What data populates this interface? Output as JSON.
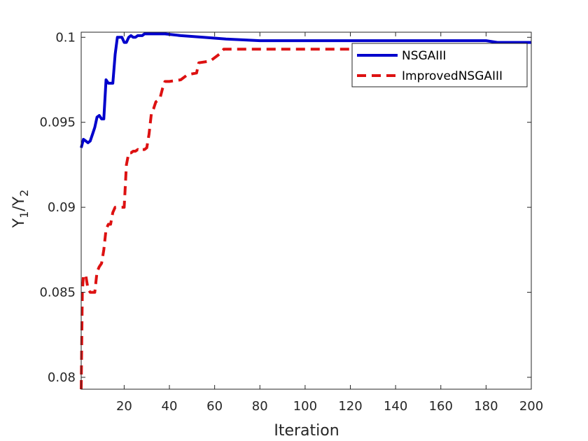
{
  "chart_data": {
    "type": "line",
    "title": "",
    "xlabel": "Iteration",
    "ylabel": {
      "base1": "Y",
      "sub1": "1",
      "sep": "/",
      "base2": "Y",
      "sub2": "2"
    },
    "xlim": [
      1,
      200
    ],
    "ylim": [
      0.0793,
      0.1003
    ],
    "xticks": [
      20,
      40,
      60,
      80,
      100,
      120,
      140,
      160,
      180,
      200
    ],
    "xtick_labels": [
      "20",
      "40",
      "60",
      "80",
      "100",
      "120",
      "140",
      "160",
      "180",
      "200"
    ],
    "yticks": [
      0.08,
      0.085,
      0.09,
      0.095,
      0.1
    ],
    "ytick_labels": [
      "0.08",
      "0.085",
      "0.09",
      "0.095",
      "0.1"
    ],
    "grid": false,
    "legend_position": "top-right",
    "series": [
      {
        "name": "NSGAIII",
        "color": "#0000CC",
        "style": "solid",
        "points": [
          [
            1,
            0.0935
          ],
          [
            2,
            0.094
          ],
          [
            3,
            0.0939
          ],
          [
            4,
            0.0938
          ],
          [
            5,
            0.0939
          ],
          [
            6,
            0.0943
          ],
          [
            7,
            0.0947
          ],
          [
            8,
            0.0953
          ],
          [
            9,
            0.0954
          ],
          [
            10,
            0.0952
          ],
          [
            11,
            0.0952
          ],
          [
            12,
            0.0975
          ],
          [
            13,
            0.0973
          ],
          [
            14,
            0.0973
          ],
          [
            15,
            0.0973
          ],
          [
            16,
            0.099
          ],
          [
            17,
            0.1
          ],
          [
            18,
            0.1
          ],
          [
            19,
            0.1
          ],
          [
            20,
            0.0997
          ],
          [
            21,
            0.0997
          ],
          [
            22,
            0.1
          ],
          [
            23,
            0.1001
          ],
          [
            24,
            0.1
          ],
          [
            25,
            0.1
          ],
          [
            26,
            0.1001
          ],
          [
            27,
            0.1001
          ],
          [
            28,
            0.1001
          ],
          [
            29,
            0.1002
          ],
          [
            30,
            0.1002
          ],
          [
            32,
            0.1002
          ],
          [
            34,
            0.1002
          ],
          [
            38,
            0.1002
          ],
          [
            45,
            0.1001
          ],
          [
            55,
            0.1
          ],
          [
            65,
            0.0999
          ],
          [
            80,
            0.0998
          ],
          [
            100,
            0.0998
          ],
          [
            120,
            0.0998
          ],
          [
            140,
            0.0998
          ],
          [
            160,
            0.0998
          ],
          [
            180,
            0.0998
          ],
          [
            185,
            0.0997
          ],
          [
            200,
            0.0997
          ]
        ]
      },
      {
        "name": "ImprovedNSGAIII",
        "color": "#DD1111",
        "style": "dashed",
        "points": [
          [
            1,
            0.0793
          ],
          [
            1.5,
            0.085
          ],
          [
            2,
            0.086
          ],
          [
            3,
            0.086
          ],
          [
            4,
            0.0852
          ],
          [
            5,
            0.085
          ],
          [
            6,
            0.085
          ],
          [
            7,
            0.085
          ],
          [
            8,
            0.0862
          ],
          [
            9,
            0.0865
          ],
          [
            10,
            0.0867
          ],
          [
            11,
            0.0875
          ],
          [
            12,
            0.0887
          ],
          [
            13,
            0.089
          ],
          [
            14,
            0.089
          ],
          [
            15,
            0.0897
          ],
          [
            16,
            0.09
          ],
          [
            17,
            0.09
          ],
          [
            18,
            0.09
          ],
          [
            19,
            0.09
          ],
          [
            20,
            0.09
          ],
          [
            21,
            0.0925
          ],
          [
            22,
            0.0932
          ],
          [
            23,
            0.0932
          ],
          [
            24,
            0.0933
          ],
          [
            25,
            0.0933
          ],
          [
            26,
            0.0934
          ],
          [
            27,
            0.0933
          ],
          [
            28,
            0.0934
          ],
          [
            29,
            0.0934
          ],
          [
            30,
            0.0935
          ],
          [
            31,
            0.0943
          ],
          [
            32,
            0.0955
          ],
          [
            33,
            0.0958
          ],
          [
            34,
            0.0962
          ],
          [
            35,
            0.0963
          ],
          [
            36,
            0.0965
          ],
          [
            37,
            0.097
          ],
          [
            38,
            0.0974
          ],
          [
            40,
            0.0974
          ],
          [
            45,
            0.0975
          ],
          [
            48,
            0.0978
          ],
          [
            52,
            0.0979
          ],
          [
            53,
            0.0985
          ],
          [
            58,
            0.0986
          ],
          [
            62,
            0.099
          ],
          [
            64,
            0.0993
          ],
          [
            100,
            0.0993
          ],
          [
            150,
            0.0993
          ],
          [
            200,
            0.0993
          ]
        ]
      }
    ]
  }
}
